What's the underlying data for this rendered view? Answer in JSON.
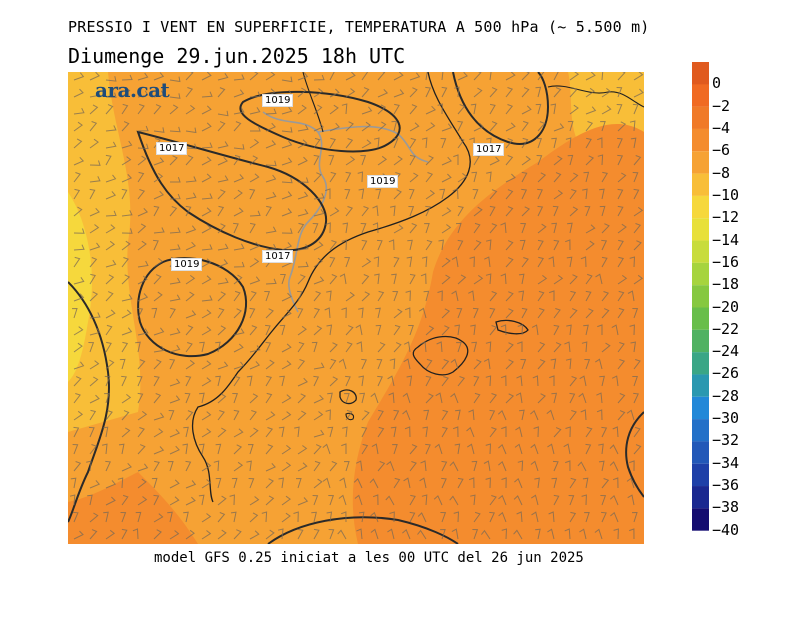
{
  "header": {
    "title": "PRESSIO I VENT EN SUPERFICIE, TEMPERATURA A 500 hPa (~ 5.500 m)",
    "subtitle": "Diumenge  29.jun.2025 18h UTC"
  },
  "brand": {
    "logo_text": "ara.cat",
    "logo_color": "#1e4c7a"
  },
  "footer": {
    "text": "model GFS 0.25 iniciat a les 00 UTC del 26 jun 2025"
  },
  "isobars": [
    {
      "label": "1019"
    },
    {
      "label": "1017"
    },
    {
      "label": "1019"
    },
    {
      "label": "1017"
    },
    {
      "label": "1017"
    },
    {
      "label": "1019"
    }
  ],
  "legend": {
    "labels": [
      "0",
      "−2",
      "−4",
      "−6",
      "−8",
      "−10",
      "−12",
      "−14",
      "−16",
      "−18",
      "−20",
      "−22",
      "−24",
      "−26",
      "−28",
      "−30",
      "−32",
      "−34",
      "−36",
      "−38",
      "−40"
    ],
    "colors": [
      "#e05a1e",
      "#f06a22",
      "#f07a28",
      "#f48c2e",
      "#f6a234",
      "#f8be38",
      "#f6d83c",
      "#e8e03a",
      "#c8dc3c",
      "#a6d43e",
      "#86c840",
      "#68be4a",
      "#50b262",
      "#3aa686",
      "#2a98b0",
      "#2288d8",
      "#2270c8",
      "#2258b8",
      "#1e40a8",
      "#1a2890",
      "#140c70"
    ]
  },
  "map": {
    "field_colors": {
      "warm_core": "#f48c2e",
      "mid": "#f6a234",
      "cool": "#f8be38",
      "coolest": "#f6d83c"
    }
  }
}
